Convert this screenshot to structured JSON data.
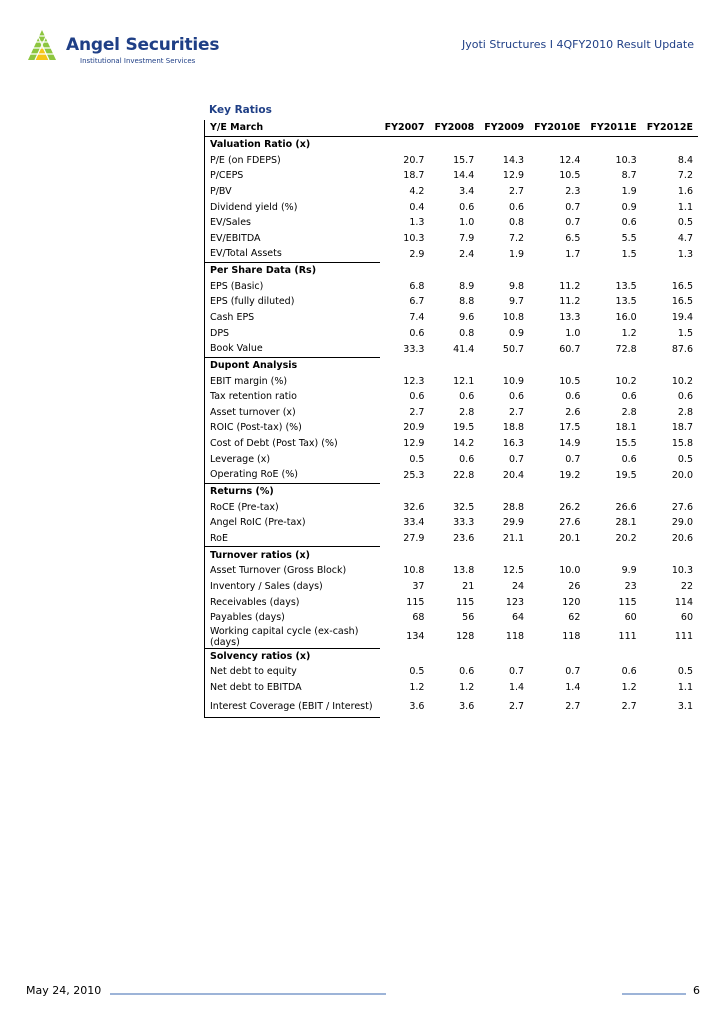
{
  "header": {
    "brand_name": "Angel Securities",
    "brand_subtitle": "Institutional Investment Services",
    "report_title": "Jyoti Structures I 4QFY2010 Result Update"
  },
  "section": {
    "title": "Key Ratios"
  },
  "table": {
    "columns": [
      "Y/E March",
      "FY2007",
      "FY2008",
      "FY2009",
      "FY2010E",
      "FY2011E",
      "FY2012E"
    ],
    "rows": [
      {
        "type": "section",
        "label": "Valuation Ratio (x)"
      },
      {
        "label": "P/E (on FDEPS)",
        "values": [
          "20.7",
          "15.7",
          "14.3",
          "12.4",
          "10.3",
          "8.4"
        ]
      },
      {
        "label": "P/CEPS",
        "values": [
          "18.7",
          "14.4",
          "12.9",
          "10.5",
          "8.7",
          "7.2"
        ]
      },
      {
        "label": "P/BV",
        "values": [
          "4.2",
          "3.4",
          "2.7",
          "2.3",
          "1.9",
          "1.6"
        ]
      },
      {
        "label": "Dividend yield (%)",
        "values": [
          "0.4",
          "0.6",
          "0.6",
          "0.7",
          "0.9",
          "1.1"
        ]
      },
      {
        "label": "EV/Sales",
        "values": [
          "1.3",
          "1.0",
          "0.8",
          "0.7",
          "0.6",
          "0.5"
        ]
      },
      {
        "label": "EV/EBITDA",
        "values": [
          "10.3",
          "7.9",
          "7.2",
          "6.5",
          "5.5",
          "4.7"
        ]
      },
      {
        "label": "EV/Total Assets",
        "values": [
          "2.9",
          "2.4",
          "1.9",
          "1.7",
          "1.5",
          "1.3"
        ]
      },
      {
        "type": "section",
        "label": "Per Share Data (Rs)"
      },
      {
        "label": "EPS (Basic)",
        "values": [
          "6.8",
          "8.9",
          "9.8",
          "11.2",
          "13.5",
          "16.5"
        ]
      },
      {
        "label": "EPS (fully diluted)",
        "values": [
          "6.7",
          "8.8",
          "9.7",
          "11.2",
          "13.5",
          "16.5"
        ]
      },
      {
        "label": "Cash EPS",
        "values": [
          "7.4",
          "9.6",
          "10.8",
          "13.3",
          "16.0",
          "19.4"
        ]
      },
      {
        "label": "DPS",
        "values": [
          "0.6",
          "0.8",
          "0.9",
          "1.0",
          "1.2",
          "1.5"
        ]
      },
      {
        "label": "Book Value",
        "values": [
          "33.3",
          "41.4",
          "50.7",
          "60.7",
          "72.8",
          "87.6"
        ]
      },
      {
        "type": "section",
        "label": "Dupont Analysis"
      },
      {
        "label": "EBIT margin (%)",
        "values": [
          "12.3",
          "12.1",
          "10.9",
          "10.5",
          "10.2",
          "10.2"
        ]
      },
      {
        "label": "Tax retention ratio",
        "values": [
          "0.6",
          "0.6",
          "0.6",
          "0.6",
          "0.6",
          "0.6"
        ]
      },
      {
        "label": "Asset turnover (x)",
        "values": [
          "2.7",
          "2.8",
          "2.7",
          "2.6",
          "2.8",
          "2.8"
        ]
      },
      {
        "label": "ROIC (Post-tax) (%)",
        "values": [
          "20.9",
          "19.5",
          "18.8",
          "17.5",
          "18.1",
          "18.7"
        ]
      },
      {
        "label": "Cost of Debt (Post Tax) (%)",
        "values": [
          "12.9",
          "14.2",
          "16.3",
          "14.9",
          "15.5",
          "15.8"
        ]
      },
      {
        "label": "Leverage (x)",
        "values": [
          "0.5",
          "0.6",
          "0.7",
          "0.7",
          "0.6",
          "0.5"
        ]
      },
      {
        "label": "Operating RoE (%)",
        "values": [
          "25.3",
          "22.8",
          "20.4",
          "19.2",
          "19.5",
          "20.0"
        ]
      },
      {
        "type": "section",
        "label": "Returns (%)"
      },
      {
        "label": "RoCE (Pre-tax)",
        "values": [
          "32.6",
          "32.5",
          "28.8",
          "26.2",
          "26.6",
          "27.6"
        ]
      },
      {
        "label": "Angel RoIC (Pre-tax)",
        "values": [
          "33.4",
          "33.3",
          "29.9",
          "27.6",
          "28.1",
          "29.0"
        ]
      },
      {
        "label": "RoE",
        "values": [
          "27.9",
          "23.6",
          "21.1",
          "20.1",
          "20.2",
          "20.6"
        ]
      },
      {
        "type": "section",
        "label": "Turnover ratios (x)"
      },
      {
        "label": "Asset Turnover (Gross Block)",
        "values": [
          "10.8",
          "13.8",
          "12.5",
          "10.0",
          "9.9",
          "10.3"
        ]
      },
      {
        "label": "Inventory / Sales (days)",
        "values": [
          "37",
          "21",
          "24",
          "26",
          "23",
          "22"
        ]
      },
      {
        "label": "Receivables (days)",
        "values": [
          "115",
          "115",
          "123",
          "120",
          "115",
          "114"
        ]
      },
      {
        "label": "Payables (days)",
        "values": [
          "68",
          "56",
          "64",
          "62",
          "60",
          "60"
        ]
      },
      {
        "label": "Working capital cycle (ex-cash) (days)",
        "tall": true,
        "values": [
          "134",
          "128",
          "118",
          "118",
          "111",
          "111"
        ]
      },
      {
        "type": "section",
        "label": "Solvency ratios (x)"
      },
      {
        "label": "Net debt to equity",
        "values": [
          "0.5",
          "0.6",
          "0.7",
          "0.7",
          "0.6",
          "0.5"
        ]
      },
      {
        "label": "Net debt to EBITDA",
        "values": [
          "1.2",
          "1.2",
          "1.4",
          "1.4",
          "1.2",
          "1.1"
        ]
      },
      {
        "label": "Interest Coverage (EBIT / Interest)",
        "tall": true,
        "last": true,
        "values": [
          "3.6",
          "3.6",
          "2.7",
          "2.7",
          "2.7",
          "3.1"
        ]
      }
    ]
  },
  "footer": {
    "date": "May 24, 2010",
    "page": "6"
  },
  "colors": {
    "brand": "#1f3f86",
    "logo_green": "#8dc63f",
    "logo_yellow": "#f5c518",
    "footer_rule": "#9db4d8"
  }
}
